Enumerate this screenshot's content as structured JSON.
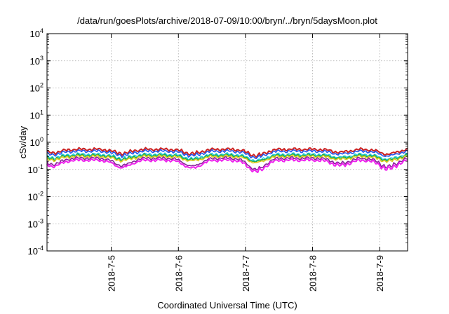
{
  "chart_data": {
    "type": "line",
    "title": "/data/run/goesPlots/archive/2018-07-09/10:00/bryn/../bryn/5daysMoon.plot",
    "xlabel": "Coordinated Universal Time (UTC)",
    "ylabel": "cSv/day",
    "yscale": "log",
    "ylim_exponents": [
      -4,
      4
    ],
    "ytick_base": "10",
    "ytick_exponents": [
      "-4",
      "-3",
      "-2",
      "-1",
      "0",
      "1",
      "2",
      "3",
      "4"
    ],
    "xlim_days": [
      "2018-07-04 01:00",
      "2018-07-09 10:00"
    ],
    "xticks": [
      "2018-7-5",
      "2018-7-6",
      "2018-7-7",
      "2018-7-8",
      "2018-7-9"
    ],
    "grid": true,
    "legend": "none",
    "series": [
      {
        "color": "#cc2222",
        "level": 0.55
      },
      {
        "color": "#2255ee",
        "level": 0.47
      },
      {
        "color": "#22ccdd",
        "level": 0.36
      },
      {
        "color": "#22aa44",
        "level": 0.33
      },
      {
        "color": "#ddcc22",
        "level": 0.3
      },
      {
        "color": "#882299",
        "level": 0.26
      },
      {
        "color": "#ee22ee",
        "level": 0.22
      }
    ],
    "dips": [
      {
        "day": "2018-07-04 03:00",
        "depth": 0.45
      },
      {
        "day": "2018-07-05 04:00",
        "depth": 0.55
      },
      {
        "day": "2018-07-06 05:00",
        "depth": 0.6
      },
      {
        "day": "2018-07-07 04:00",
        "depth": 0.85
      },
      {
        "day": "2018-07-08 10:00",
        "depth": 0.4
      },
      {
        "day": "2018-07-09 03:00",
        "depth": 0.65
      }
    ]
  }
}
